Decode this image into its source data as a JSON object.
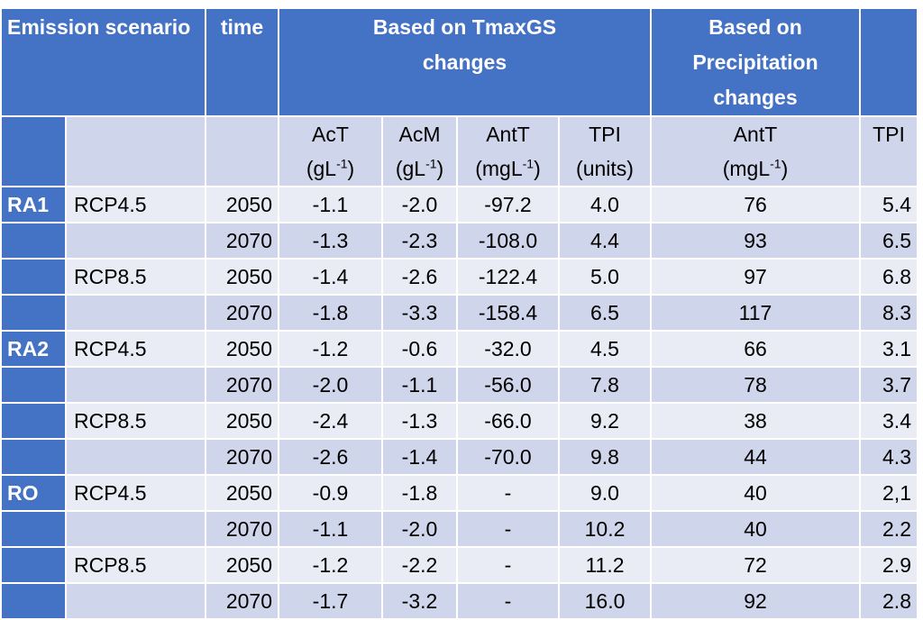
{
  "header": {
    "emission": "Emission scenario",
    "time": "time",
    "tmax": "Based on TmaxGS changes",
    "precip": "Based on Precipitation changes"
  },
  "subheader": {
    "act": "AcT",
    "act_unit": "(gL",
    "acm": "AcM",
    "acm_unit": "(gL",
    "antt": "AntT",
    "antt_unit": "(mgL",
    "tpi": "TPI",
    "tpi_unit": "(units)",
    "antt2": "AntT",
    "antt2_unit": "(mgL",
    "tpi2": "TPI",
    "exp": "-1",
    "close": ")"
  },
  "rows": [
    {
      "group": "RA1",
      "rcp": "RCP4.5",
      "time": "2050",
      "act": "-1.1",
      "acm": "-2.0",
      "antt": "-97.2",
      "tpi": "4.0",
      "antt_p": "76",
      "tpi_p": "5.4"
    },
    {
      "group": "",
      "rcp": "",
      "time": "2070",
      "act": "-1.3",
      "acm": "-2.3",
      "antt": "-108.0",
      "tpi": "4.4",
      "antt_p": "93",
      "tpi_p": "6.5"
    },
    {
      "group": "",
      "rcp": "RCP8.5",
      "time": "2050",
      "act": "-1.4",
      "acm": "-2.6",
      "antt": "-122.4",
      "tpi": "5.0",
      "antt_p": "97",
      "tpi_p": "6.8"
    },
    {
      "group": "",
      "rcp": "",
      "time": "2070",
      "act": "-1.8",
      "acm": "-3.3",
      "antt": "-158.4",
      "tpi": "6.5",
      "antt_p": "117",
      "tpi_p": "8.3"
    },
    {
      "group": "RA2",
      "rcp": "RCP4.5",
      "time": "2050",
      "act": "-1.2",
      "acm": "-0.6",
      "antt": "-32.0",
      "tpi": "4.5",
      "antt_p": "66",
      "tpi_p": "3.1"
    },
    {
      "group": "",
      "rcp": "",
      "time": "2070",
      "act": "-2.0",
      "acm": "-1.1",
      "antt": "-56.0",
      "tpi": "7.8",
      "antt_p": "78",
      "tpi_p": "3.7"
    },
    {
      "group": "",
      "rcp": "RCP8.5",
      "time": "2050",
      "act": "-2.4",
      "acm": "-1.3",
      "antt": "-66.0",
      "tpi": "9.2",
      "antt_p": "38",
      "tpi_p": "3.4"
    },
    {
      "group": "",
      "rcp": "",
      "time": "2070",
      "act": "-2.6",
      "acm": "-1.4",
      "antt": "-70.0",
      "tpi": "9.8",
      "antt_p": "44",
      "tpi_p": "4.3"
    },
    {
      "group": "RO",
      "rcp": "RCP4.5",
      "time": "2050",
      "act": "-0.9",
      "acm": "-1.8",
      "antt": "-",
      "tpi": "9.0",
      "antt_p": "40",
      "tpi_p": "2,1"
    },
    {
      "group": "",
      "rcp": "",
      "time": "2070",
      "act": "-1.1",
      "acm": "-2.0",
      "antt": "-",
      "tpi": "10.2",
      "antt_p": "40",
      "tpi_p": "2.2"
    },
    {
      "group": "",
      "rcp": "RCP8.5",
      "time": "2050",
      "act": "-1.2",
      "acm": "-2.2",
      "antt": "-",
      "tpi": "11.2",
      "antt_p": "72",
      "tpi_p": "2.9"
    },
    {
      "group": "",
      "rcp": "",
      "time": "2070",
      "act": "-1.7",
      "acm": "-3.2",
      "antt": "-",
      "tpi": "16.0",
      "antt_p": "92",
      "tpi_p": "2.8"
    }
  ],
  "colors": {
    "header": "#4472c4",
    "band_dark": "#cfd5ea",
    "band_light": "#e9ebf5"
  }
}
